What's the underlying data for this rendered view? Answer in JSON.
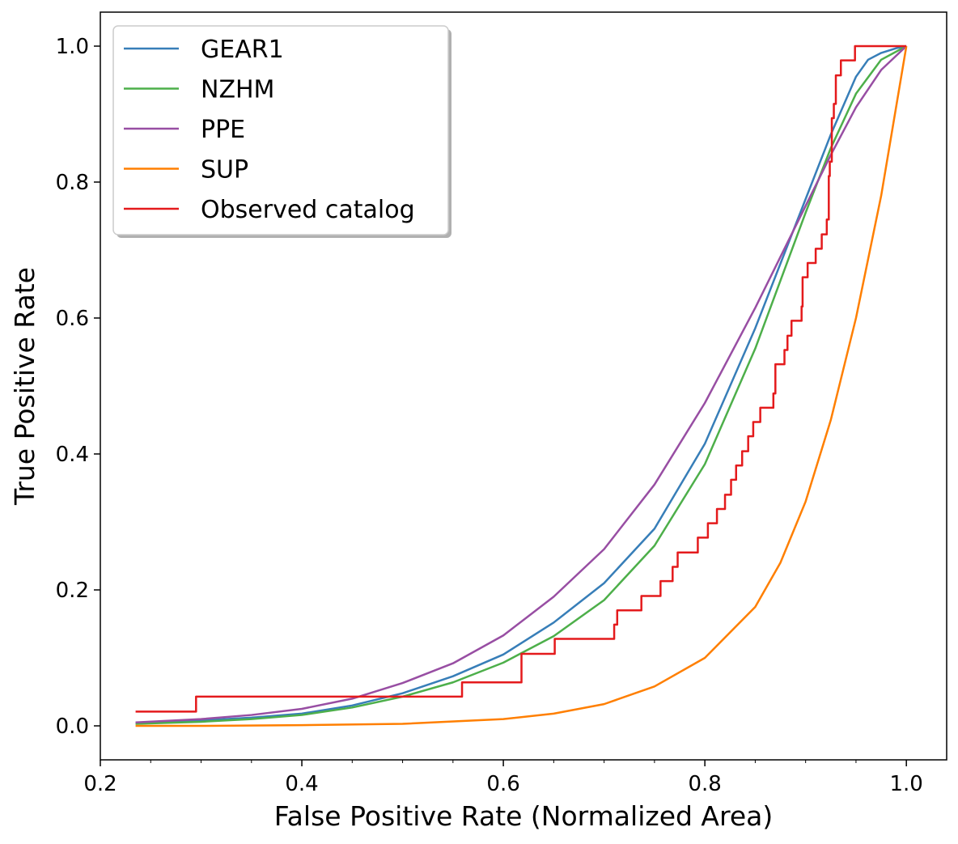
{
  "chart_data": {
    "type": "line",
    "title": "",
    "xlabel": "False Positive Rate (Normalized Area)",
    "ylabel": "True Positive Rate",
    "xlim": [
      0.2,
      1.04
    ],
    "ylim": [
      -0.05,
      1.05
    ],
    "x_ticks": [
      0.2,
      0.4,
      0.6,
      0.8,
      1.0
    ],
    "x_tick_labels": [
      "0.2",
      "0.4",
      "0.6",
      "0.8",
      "1.0"
    ],
    "y_ticks": [
      0.0,
      0.2,
      0.4,
      0.6,
      0.8,
      1.0
    ],
    "y_tick_labels": [
      "0.0",
      "0.2",
      "0.4",
      "0.6",
      "0.8",
      "1.0"
    ],
    "x_minor_ticks_visible": true,
    "grid": false,
    "legend": "top-left",
    "series": [
      {
        "name": "GEAR1",
        "color": "#377eb8",
        "step": false,
        "x": [
          0.235,
          0.3,
          0.35,
          0.4,
          0.45,
          0.5,
          0.55,
          0.6,
          0.65,
          0.7,
          0.75,
          0.8,
          0.85,
          0.9,
          0.925,
          0.95,
          0.962,
          0.975,
          0.99,
          1.0
        ],
        "y": [
          0.004,
          0.008,
          0.012,
          0.018,
          0.03,
          0.048,
          0.073,
          0.105,
          0.152,
          0.21,
          0.29,
          0.415,
          0.585,
          0.775,
          0.87,
          0.955,
          0.98,
          0.99,
          0.997,
          1.0
        ]
      },
      {
        "name": "NZHM",
        "color": "#4daf4a",
        "step": false,
        "x": [
          0.235,
          0.3,
          0.35,
          0.4,
          0.45,
          0.5,
          0.55,
          0.6,
          0.65,
          0.7,
          0.75,
          0.8,
          0.85,
          0.9,
          0.925,
          0.95,
          0.975,
          1.0
        ],
        "y": [
          0.003,
          0.006,
          0.01,
          0.016,
          0.027,
          0.043,
          0.064,
          0.093,
          0.132,
          0.185,
          0.265,
          0.385,
          0.555,
          0.755,
          0.85,
          0.93,
          0.98,
          1.0
        ]
      },
      {
        "name": "PPE",
        "color": "#984ea3",
        "step": false,
        "x": [
          0.235,
          0.3,
          0.35,
          0.4,
          0.45,
          0.5,
          0.55,
          0.6,
          0.65,
          0.7,
          0.75,
          0.8,
          0.85,
          0.9,
          0.925,
          0.95,
          0.975,
          1.0
        ],
        "y": [
          0.005,
          0.01,
          0.016,
          0.025,
          0.04,
          0.063,
          0.092,
          0.133,
          0.19,
          0.26,
          0.355,
          0.475,
          0.615,
          0.765,
          0.84,
          0.91,
          0.965,
          1.0
        ]
      },
      {
        "name": "SUP",
        "color": "#ff7f00",
        "step": false,
        "x": [
          0.235,
          0.3,
          0.4,
          0.5,
          0.6,
          0.65,
          0.7,
          0.75,
          0.8,
          0.85,
          0.875,
          0.9,
          0.925,
          0.95,
          0.975,
          1.0
        ],
        "y": [
          0.0,
          0.0,
          0.001,
          0.003,
          0.01,
          0.018,
          0.032,
          0.058,
          0.1,
          0.175,
          0.24,
          0.33,
          0.45,
          0.6,
          0.78,
          1.0
        ]
      },
      {
        "name": "Observed catalog",
        "color": "#e41a1c",
        "step": true,
        "x": [
          0.235,
          0.295,
          0.559,
          0.618,
          0.651,
          0.71,
          0.713,
          0.737,
          0.756,
          0.768,
          0.773,
          0.793,
          0.803,
          0.812,
          0.82,
          0.826,
          0.831,
          0.837,
          0.843,
          0.848,
          0.855,
          0.868,
          0.87,
          0.879,
          0.882,
          0.886,
          0.896,
          0.897,
          0.902,
          0.91,
          0.916,
          0.921,
          0.923,
          0.924,
          0.926,
          0.928,
          0.93,
          0.935,
          0.949,
          1.0
        ],
        "y": [
          0.021,
          0.043,
          0.064,
          0.106,
          0.128,
          0.149,
          0.17,
          0.191,
          0.213,
          0.234,
          0.255,
          0.277,
          0.298,
          0.319,
          0.34,
          0.362,
          0.383,
          0.404,
          0.426,
          0.447,
          0.468,
          0.489,
          0.532,
          0.553,
          0.574,
          0.596,
          0.617,
          0.66,
          0.681,
          0.702,
          0.723,
          0.745,
          0.809,
          0.83,
          0.894,
          0.915,
          0.957,
          0.979,
          1.0,
          1.0
        ]
      }
    ]
  }
}
